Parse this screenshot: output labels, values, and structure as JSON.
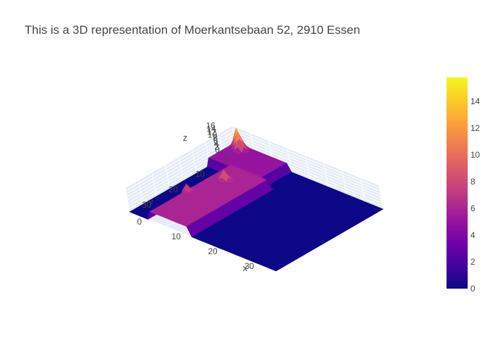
{
  "title": "This is a 3D representation of Moerkantsebaan 52, 2910 Essen",
  "chart_data": {
    "type": "surface",
    "title": "This is a 3D representation of Moerkantsebaan 52, 2910 Essen",
    "axes": {
      "x": {
        "label": "x",
        "ticks": [
          "0",
          "10",
          "20",
          "30"
        ],
        "range": [
          0,
          40
        ]
      },
      "y": {
        "label": "y",
        "ticks": [
          "0",
          "10",
          "20",
          "30"
        ],
        "range": [
          0,
          40
        ]
      },
      "z": {
        "label": "z",
        "ticks": [
          "0",
          "2",
          "4",
          "6",
          "8",
          "10",
          "12",
          "14",
          "16"
        ],
        "range": [
          0,
          16
        ]
      }
    },
    "colorbar": {
      "ticks": [
        "0",
        "2",
        "4",
        "6",
        "8",
        "10",
        "12",
        "14"
      ],
      "range": [
        0,
        15.8
      ],
      "colorscale": "plasma"
    },
    "surface": {
      "base_z": 0,
      "building": [
        {
          "part": "main strip",
          "x_range": [
            6,
            16
          ],
          "y_range": [
            10,
            40
          ],
          "z": 6
        },
        {
          "part": "wing",
          "x_range": [
            0,
            14
          ],
          "y_range": [
            0,
            10
          ],
          "z": 5
        }
      ],
      "peaks": [
        {
          "x": 1,
          "y": 0,
          "z": 15.5
        },
        {
          "x": 2,
          "y": 1,
          "z": 14.5
        },
        {
          "x": 3,
          "y": 2,
          "z": 12
        },
        {
          "x": 9,
          "y": 16,
          "z": 12
        },
        {
          "x": 6,
          "y": 26,
          "z": 10
        }
      ]
    },
    "grid": true,
    "legend": "none"
  }
}
